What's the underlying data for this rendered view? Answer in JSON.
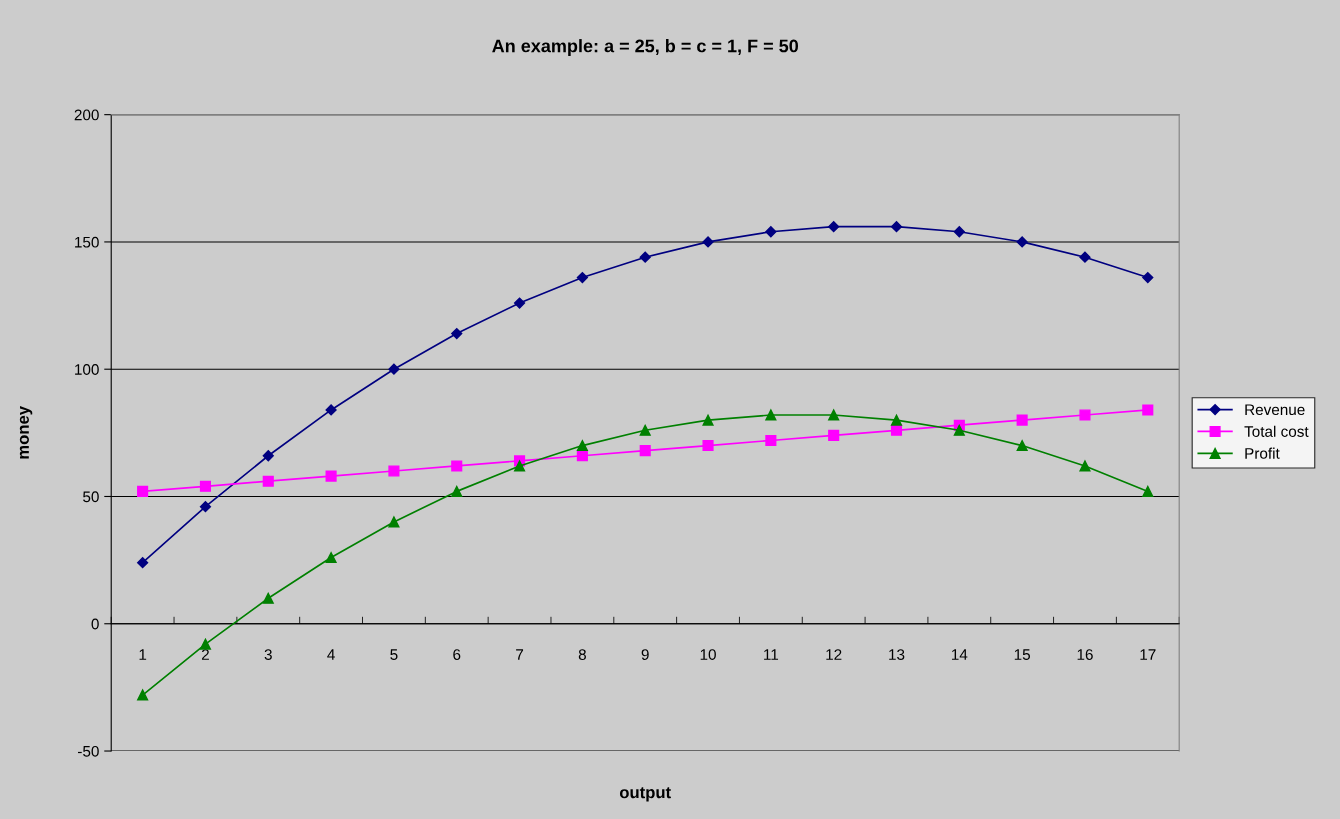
{
  "chart_data": {
    "type": "line",
    "title": "An example: a = 25, b = c = 1, F = 50",
    "xlabel": "output",
    "ylabel": "money",
    "categories": [
      "1",
      "2",
      "3",
      "4",
      "5",
      "6",
      "7",
      "8",
      "9",
      "10",
      "11",
      "12",
      "13",
      "14",
      "15",
      "16",
      "17"
    ],
    "series": [
      {
        "name": "Revenue",
        "color": "#000080",
        "marker": "diamond",
        "values": [
          24,
          46,
          66,
          84,
          100,
          114,
          126,
          136,
          144,
          150,
          154,
          156,
          156,
          154,
          150,
          144,
          136
        ]
      },
      {
        "name": "Total cost",
        "color": "#ff00ff",
        "marker": "square",
        "values": [
          52,
          54,
          56,
          58,
          60,
          62,
          64,
          66,
          68,
          70,
          72,
          74,
          76,
          78,
          80,
          82,
          84
        ]
      },
      {
        "name": "Profit",
        "color": "#008000",
        "marker": "triangle",
        "values": [
          -28,
          -8,
          10,
          26,
          40,
          52,
          62,
          70,
          76,
          80,
          82,
          82,
          80,
          76,
          70,
          62,
          52
        ]
      }
    ],
    "ylim": [
      -50,
      200
    ],
    "yticks": [
      -50,
      0,
      50,
      100,
      150,
      200
    ],
    "grid": "y",
    "legend": "right",
    "line_style": "solid"
  }
}
